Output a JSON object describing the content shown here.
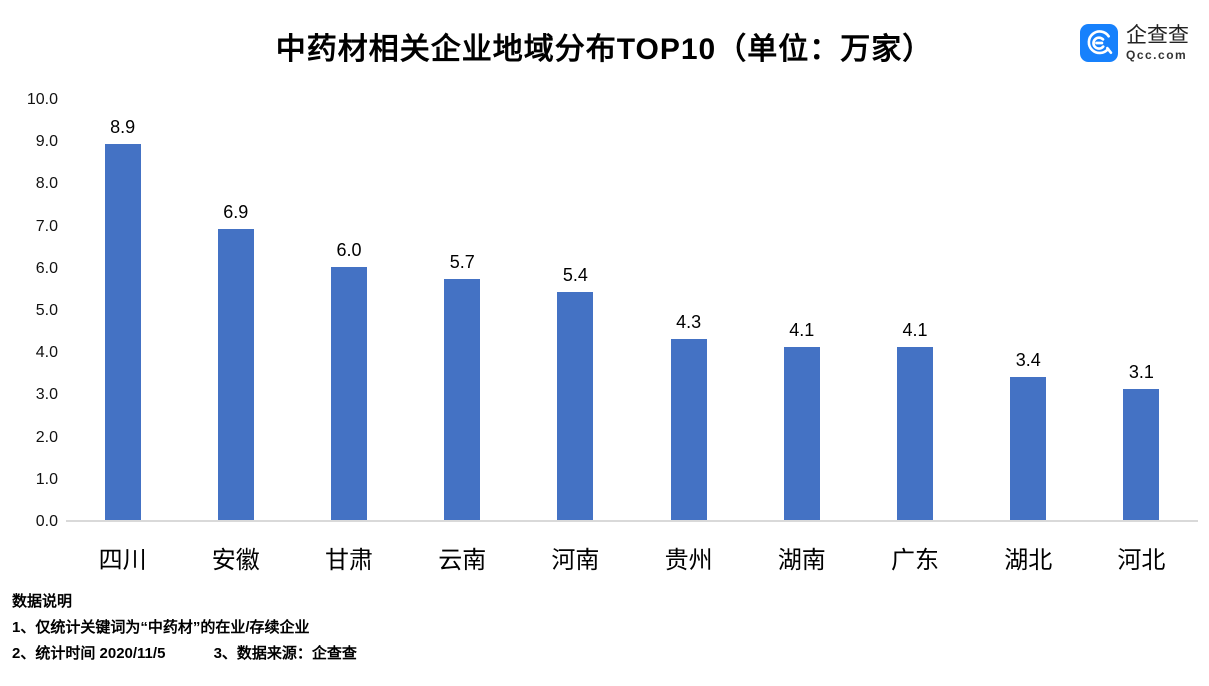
{
  "header": {
    "title": "中药材相关企业地域分布TOP10（单位：万家）",
    "logo": {
      "name": "企查查",
      "domain": "Qcc.com",
      "icon": "qcc-magnifier-icon",
      "icon_color": "#1781FC"
    }
  },
  "chart_data": {
    "type": "bar",
    "title": "中药材相关企业地域分布TOP10",
    "unit": "万家",
    "categories": [
      "四川",
      "安徽",
      "甘肃",
      "云南",
      "河南",
      "贵州",
      "湖南",
      "广东",
      "湖北",
      "河北"
    ],
    "values": [
      8.9,
      6.9,
      6.0,
      5.7,
      5.4,
      4.3,
      4.1,
      4.1,
      3.4,
      3.1
    ],
    "ylim": [
      0,
      10
    ],
    "ytick_step": 1.0,
    "ytick_format_decimals": 1,
    "grid": false,
    "legend": false,
    "bar_color": "#4472C4",
    "axis_line_color": "#d9d9d9",
    "value_labels_shown": true
  },
  "footer": {
    "heading": "数据说明",
    "note1": "1、仅统计关键词为“中药材”的在业/存续企业",
    "note2": "2、统计时间  2020/11/5",
    "note3": "3、数据来源：企查查"
  }
}
